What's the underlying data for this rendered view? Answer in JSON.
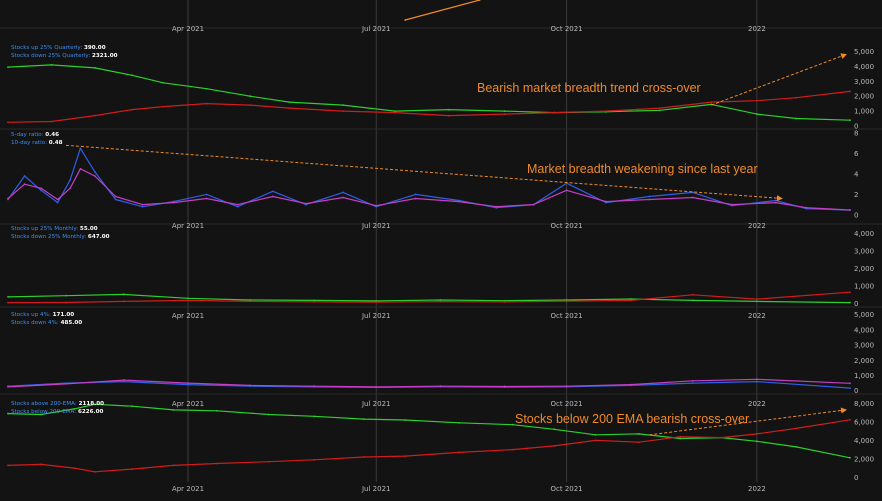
{
  "colors": {
    "background": "#131313",
    "panel": "#1b1b1b",
    "grid": "#3a3a3a",
    "green": "#2bd02b",
    "red": "#d21c1c",
    "blue": "#2f5fe8",
    "magenta": "#c63ec6",
    "annotation": "#f08a28",
    "label_key": "#3d8ff0"
  },
  "time_axis": {
    "start": "2021-01-04",
    "end": "2022-02-15",
    "ticks": [
      "Apr 2021",
      "Jul 2021",
      "Oct 2021",
      "2022"
    ],
    "tick_dates": [
      "2021-04-01",
      "2021-07-01",
      "2021-10-01",
      "2022-01-01"
    ]
  },
  "chart_data": [
    {
      "id": "top",
      "type": "line",
      "title": "",
      "series": [
        {
          "color": "#f08a28",
          "x": [
            "2021-07-15",
            "2021-08-20"
          ],
          "values": [
            0,
            1
          ]
        }
      ]
    },
    {
      "id": "quarterly",
      "type": "line",
      "labels": [
        {
          "key": "Stocks up 25% Quarterly:",
          "value": "390.00"
        },
        {
          "key": "Stocks down 25% Quarterly:",
          "value": "2321.00"
        }
      ],
      "ylim": [
        0,
        5500
      ],
      "yticks": [
        "0",
        "1,000",
        "2,000",
        "3,000",
        "4,000",
        "5,000"
      ],
      "ytick_values": [
        0,
        1000,
        2000,
        3000,
        4000,
        5000
      ],
      "annotation": "Bearish market breadth trend cross-over",
      "arrow": {
        "x": [
          "2021-12-10",
          "2022-02-15"
        ],
        "y": [
          1400,
          4800
        ]
      },
      "series": [
        {
          "color": "#2bd02b",
          "x": [
            "2021-01-04",
            "2021-01-25",
            "2021-02-15",
            "2021-03-05",
            "2021-03-20",
            "2021-04-10",
            "2021-05-01",
            "2021-05-20",
            "2021-06-15",
            "2021-07-10",
            "2021-08-05",
            "2021-09-01",
            "2021-09-25",
            "2021-10-20",
            "2021-11-15",
            "2021-12-10",
            "2022-01-01",
            "2022-01-20",
            "2022-02-15"
          ],
          "values": [
            3950,
            4100,
            3900,
            3400,
            2900,
            2500,
            2000,
            1600,
            1400,
            1000,
            1100,
            1000,
            900,
            950,
            1050,
            1450,
            800,
            500,
            390
          ]
        },
        {
          "color": "#d21c1c",
          "x": [
            "2021-01-04",
            "2021-01-25",
            "2021-02-15",
            "2021-03-05",
            "2021-03-20",
            "2021-04-10",
            "2021-05-01",
            "2021-05-20",
            "2021-06-15",
            "2021-07-10",
            "2021-08-05",
            "2021-09-01",
            "2021-09-25",
            "2021-10-20",
            "2021-11-15",
            "2021-12-10",
            "2022-01-01",
            "2022-01-20",
            "2022-02-15"
          ],
          "values": [
            250,
            300,
            700,
            1100,
            1300,
            1500,
            1400,
            1200,
            1000,
            900,
            700,
            800,
            900,
            1000,
            1200,
            1600,
            1700,
            1900,
            2321
          ]
        }
      ]
    },
    {
      "id": "ratio",
      "type": "line",
      "labels": [
        {
          "key": "5-day ratio:",
          "value": "0.46"
        },
        {
          "key": "10-day ratio:",
          "value": "0.48"
        }
      ],
      "ylim": [
        -0.6,
        8.2
      ],
      "yticks": [
        "0",
        "2",
        "4",
        "6",
        "8"
      ],
      "ytick_values": [
        0,
        2,
        4,
        6,
        8
      ],
      "annotation": "Market breadth weakening since last year",
      "arrow": {
        "x": [
          "2021-02-01",
          "2022-01-15"
        ],
        "y": [
          6.8,
          1.6
        ]
      },
      "series": [
        {
          "color": "#2f5fe8",
          "x": [
            "2021-01-04",
            "2021-01-12",
            "2021-01-20",
            "2021-01-28",
            "2021-02-03",
            "2021-02-08",
            "2021-02-15",
            "2021-02-25",
            "2021-03-10",
            "2021-03-25",
            "2021-04-10",
            "2021-04-25",
            "2021-05-12",
            "2021-05-28",
            "2021-06-15",
            "2021-07-01",
            "2021-07-20",
            "2021-08-10",
            "2021-08-28",
            "2021-09-15",
            "2021-10-01",
            "2021-10-20",
            "2021-11-10",
            "2021-12-01",
            "2021-12-20",
            "2022-01-10",
            "2022-01-25",
            "2022-02-15"
          ],
          "values": [
            1.5,
            3.8,
            2.4,
            1.2,
            3.4,
            6.5,
            4.2,
            1.5,
            0.8,
            1.3,
            2.0,
            0.8,
            2.3,
            1.0,
            2.2,
            0.8,
            2.0,
            1.4,
            0.7,
            1.0,
            3.1,
            1.2,
            1.8,
            2.2,
            0.9,
            1.4,
            0.6,
            0.46
          ]
        },
        {
          "color": "#c63ec6",
          "x": [
            "2021-01-04",
            "2021-01-12",
            "2021-01-20",
            "2021-01-28",
            "2021-02-03",
            "2021-02-08",
            "2021-02-15",
            "2021-02-25",
            "2021-03-10",
            "2021-03-25",
            "2021-04-10",
            "2021-04-25",
            "2021-05-12",
            "2021-05-28",
            "2021-06-15",
            "2021-07-01",
            "2021-07-20",
            "2021-08-10",
            "2021-08-28",
            "2021-09-15",
            "2021-10-01",
            "2021-10-20",
            "2021-11-10",
            "2021-12-01",
            "2021-12-20",
            "2022-01-10",
            "2022-01-25",
            "2022-02-15"
          ],
          "values": [
            1.6,
            3.0,
            2.6,
            1.5,
            2.6,
            4.5,
            3.8,
            1.8,
            1.0,
            1.2,
            1.6,
            1.0,
            1.8,
            1.1,
            1.7,
            0.9,
            1.6,
            1.3,
            0.8,
            1.0,
            2.4,
            1.3,
            1.5,
            1.7,
            1.0,
            1.2,
            0.7,
            0.48
          ]
        }
      ]
    },
    {
      "id": "monthly",
      "type": "line",
      "labels": [
        {
          "key": "Stocks up 25% Monthly:",
          "value": "55.00"
        },
        {
          "key": "Stocks down 25% Monthly:",
          "value": "647.00"
        }
      ],
      "ylim": [
        -200,
        4500
      ],
      "yticks": [
        "0",
        "1,000",
        "2,000",
        "3,000",
        "4,000"
      ],
      "ytick_values": [
        0,
        1000,
        2000,
        3000,
        4000
      ],
      "series": [
        {
          "color": "#2bd02b",
          "x": [
            "2021-01-04",
            "2021-02-01",
            "2021-03-01",
            "2021-04-01",
            "2021-05-01",
            "2021-06-01",
            "2021-07-01",
            "2021-08-01",
            "2021-09-01",
            "2021-10-01",
            "2021-11-01",
            "2021-12-01",
            "2022-01-01",
            "2022-02-15"
          ],
          "values": [
            380,
            450,
            520,
            300,
            200,
            180,
            150,
            200,
            160,
            200,
            260,
            180,
            120,
            55
          ]
        },
        {
          "color": "#d21c1c",
          "x": [
            "2021-01-04",
            "2021-02-01",
            "2021-03-01",
            "2021-04-01",
            "2021-05-01",
            "2021-06-01",
            "2021-07-01",
            "2021-08-01",
            "2021-09-01",
            "2021-10-01",
            "2021-11-01",
            "2021-12-01",
            "2022-01-01",
            "2022-02-15"
          ],
          "values": [
            50,
            60,
            120,
            180,
            120,
            90,
            80,
            110,
            90,
            130,
            180,
            500,
            250,
            647
          ]
        }
      ]
    },
    {
      "id": "daily4",
      "type": "line",
      "labels": [
        {
          "key": "Stocks up 4%:",
          "value": "171.00"
        },
        {
          "key": "Stocks down 4%:",
          "value": "485.00"
        }
      ],
      "ylim": [
        -150,
        5500
      ],
      "yticks": [
        "0",
        "1,000",
        "2,000",
        "3,000",
        "4,000",
        "5,000"
      ],
      "ytick_values": [
        0,
        1000,
        2000,
        3000,
        4000,
        5000
      ],
      "series": [
        {
          "color": "#2f5fe8",
          "x": [
            "2021-01-04",
            "2021-02-01",
            "2021-03-01",
            "2021-04-01",
            "2021-05-01",
            "2021-06-01",
            "2021-07-01",
            "2021-08-01",
            "2021-09-01",
            "2021-10-01",
            "2021-11-01",
            "2021-12-01",
            "2022-01-01",
            "2022-02-15"
          ],
          "values": [
            300,
            500,
            600,
            400,
            300,
            250,
            220,
            260,
            230,
            260,
            350,
            500,
            600,
            171
          ]
        },
        {
          "color": "#c63ec6",
          "x": [
            "2021-01-04",
            "2021-02-01",
            "2021-03-01",
            "2021-04-01",
            "2021-05-01",
            "2021-06-01",
            "2021-07-01",
            "2021-08-01",
            "2021-09-01",
            "2021-10-01",
            "2021-11-01",
            "2021-12-01",
            "2022-01-01",
            "2022-02-15"
          ],
          "values": [
            250,
            450,
            700,
            500,
            350,
            300,
            250,
            300,
            280,
            300,
            400,
            650,
            750,
            485
          ]
        }
      ]
    },
    {
      "id": "ema",
      "type": "line",
      "labels": [
        {
          "key": "Stocks above 200-EMA:",
          "value": "2118.00"
        },
        {
          "key": "Stocks below 200-EMA:",
          "value": "6226.00"
        }
      ],
      "ylim": [
        -500,
        8800
      ],
      "yticks": [
        "0",
        "2,000",
        "4,000",
        "6,000",
        "8,000"
      ],
      "ytick_values": [
        0,
        2000,
        4000,
        6000,
        8000
      ],
      "annotation": "Stocks below 200 EMA bearish cross-over",
      "arrow": {
        "x": [
          "2021-11-10",
          "2022-02-15"
        ],
        "y": [
          4600,
          7300
        ]
      },
      "series": [
        {
          "color": "#2bd02b",
          "x": [
            "2021-01-04",
            "2021-01-20",
            "2021-02-05",
            "2021-02-15",
            "2021-03-05",
            "2021-03-25",
            "2021-04-15",
            "2021-05-10",
            "2021-06-01",
            "2021-06-25",
            "2021-07-15",
            "2021-08-10",
            "2021-09-05",
            "2021-09-25",
            "2021-10-15",
            "2021-11-05",
            "2021-11-25",
            "2021-12-15",
            "2022-01-01",
            "2022-01-20",
            "2022-02-15"
          ],
          "values": [
            6900,
            6800,
            7400,
            7900,
            7700,
            7300,
            7200,
            6800,
            6600,
            6300,
            6200,
            5900,
            5700,
            5200,
            4600,
            4700,
            4200,
            4300,
            3900,
            3300,
            2118
          ]
        },
        {
          "color": "#d21c1c",
          "x": [
            "2021-01-04",
            "2021-01-20",
            "2021-02-05",
            "2021-02-15",
            "2021-03-05",
            "2021-03-25",
            "2021-04-15",
            "2021-05-10",
            "2021-06-01",
            "2021-06-25",
            "2021-07-15",
            "2021-08-10",
            "2021-09-05",
            "2021-09-25",
            "2021-10-15",
            "2021-11-05",
            "2021-11-25",
            "2021-12-15",
            "2022-01-01",
            "2022-01-20",
            "2022-02-15"
          ],
          "values": [
            1300,
            1400,
            1000,
            600,
            900,
            1300,
            1500,
            1700,
            1900,
            2200,
            2300,
            2700,
            3000,
            3400,
            4000,
            3800,
            4400,
            4300,
            4700,
            5300,
            6226
          ]
        }
      ]
    }
  ]
}
